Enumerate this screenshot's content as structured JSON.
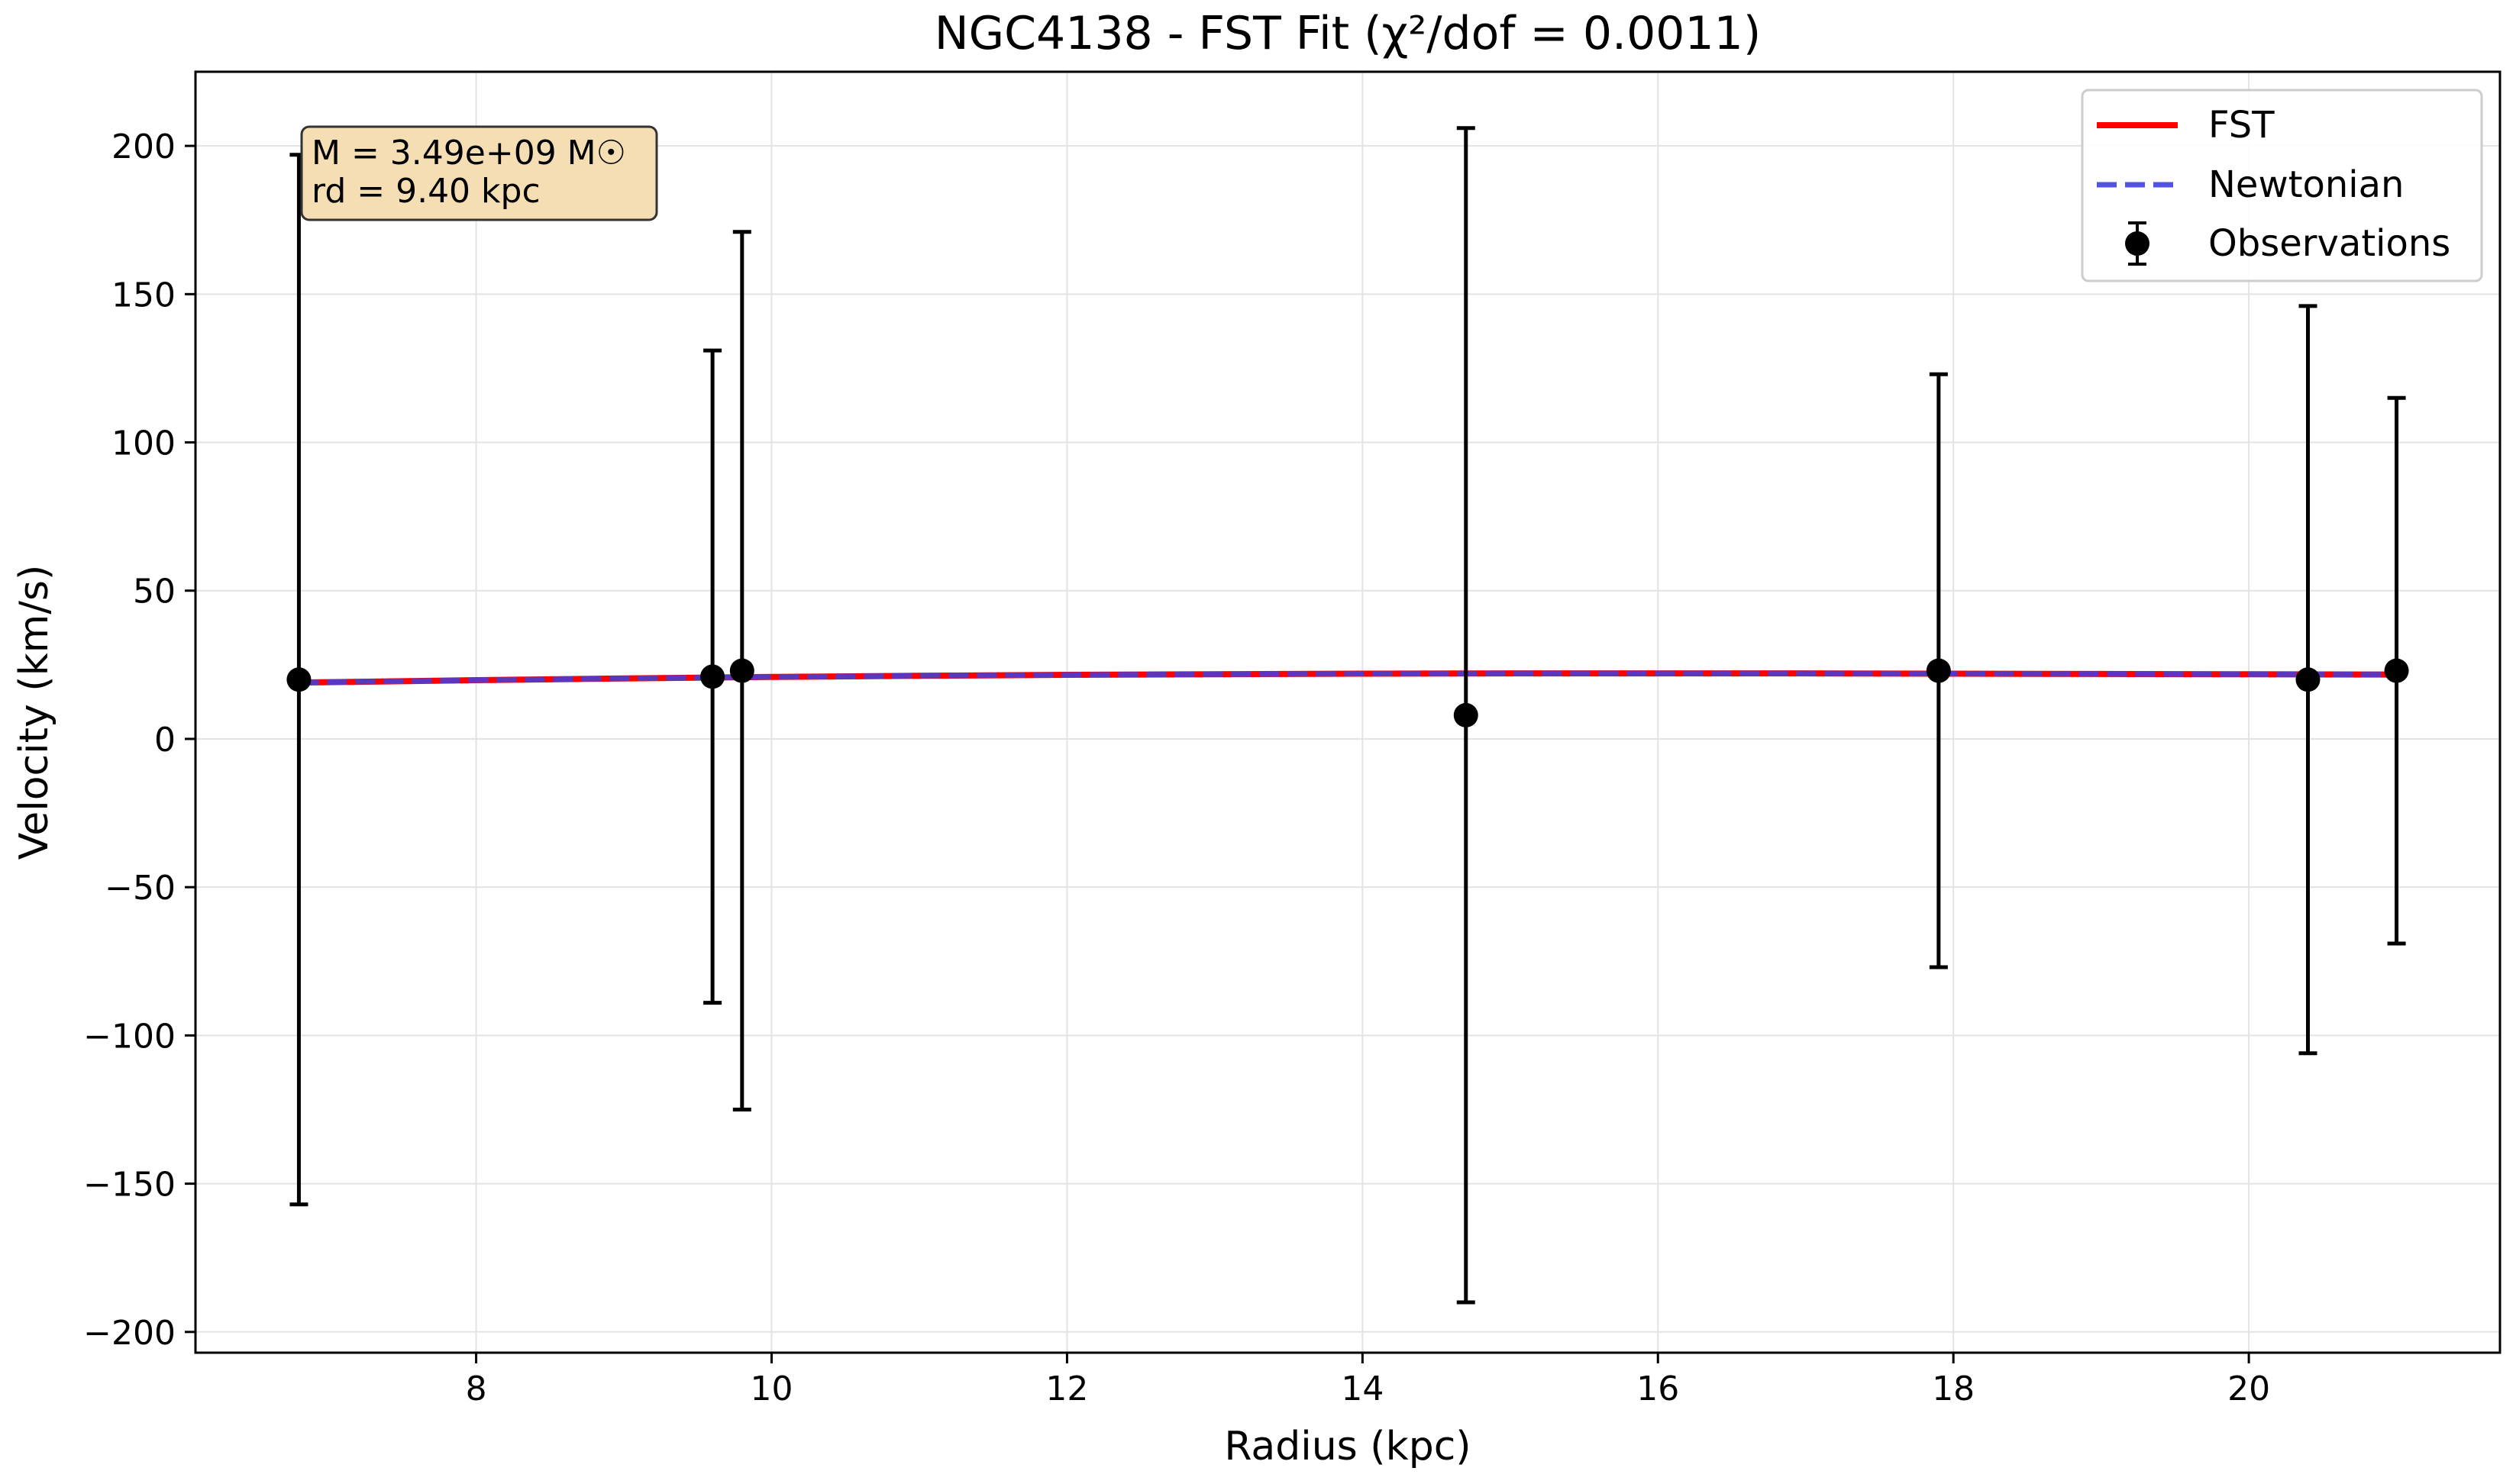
{
  "chart_data": {
    "type": "scatter",
    "title": "NGC4138 - FST Fit (χ²/dof = 0.0011)",
    "xlabel": "Radius (kpc)",
    "ylabel": "Velocity (km/s)",
    "xlim": [
      6.1,
      21.7
    ],
    "ylim": [
      -207,
      225
    ],
    "xticks": [
      8,
      10,
      12,
      14,
      16,
      18,
      20
    ],
    "xtick_labels": [
      "8",
      "10",
      "12",
      "14",
      "16",
      "18",
      "20"
    ],
    "yticks": [
      -200,
      -150,
      -100,
      -50,
      0,
      50,
      100,
      150,
      200
    ],
    "ytick_labels": [
      "−200",
      "−150",
      "−100",
      "−50",
      "0",
      "50",
      "100",
      "150",
      "200"
    ],
    "grid": true,
    "legend_position": "top-right",
    "annotation": {
      "lines": [
        "M = 3.49e+09 M☉",
        "rd = 9.40 kpc"
      ],
      "position": "top-left",
      "background": "#f5deb3",
      "border": "#333333"
    },
    "series": [
      {
        "name": "FST",
        "kind": "line",
        "color": "#ff0000",
        "style": "solid",
        "x": [
          6.8,
          8,
          9,
          10,
          11,
          12,
          13,
          14,
          15,
          16,
          17,
          18,
          19,
          20,
          21
        ],
        "y": [
          19.0,
          19.8,
          20.4,
          20.9,
          21.3,
          21.6,
          21.8,
          22.0,
          22.1,
          22.1,
          22.1,
          22.0,
          21.9,
          21.8,
          21.7
        ]
      },
      {
        "name": "Newtonian",
        "kind": "line",
        "color": "#4040e0",
        "style": "dashed",
        "x": [
          6.8,
          8,
          9,
          10,
          11,
          12,
          13,
          14,
          15,
          16,
          17,
          18,
          19,
          20,
          21
        ],
        "y": [
          19.0,
          19.8,
          20.4,
          20.9,
          21.3,
          21.6,
          21.8,
          22.0,
          22.1,
          22.1,
          22.1,
          22.0,
          21.9,
          21.8,
          21.7
        ]
      },
      {
        "name": "Observations",
        "kind": "errorbar",
        "color": "#000000",
        "x": [
          6.8,
          9.6,
          9.8,
          14.7,
          17.9,
          20.4,
          21.0
        ],
        "y": [
          20,
          21,
          23,
          8,
          23,
          20,
          23
        ],
        "yerr": [
          177,
          110,
          148,
          198,
          100,
          126,
          92
        ]
      }
    ]
  }
}
